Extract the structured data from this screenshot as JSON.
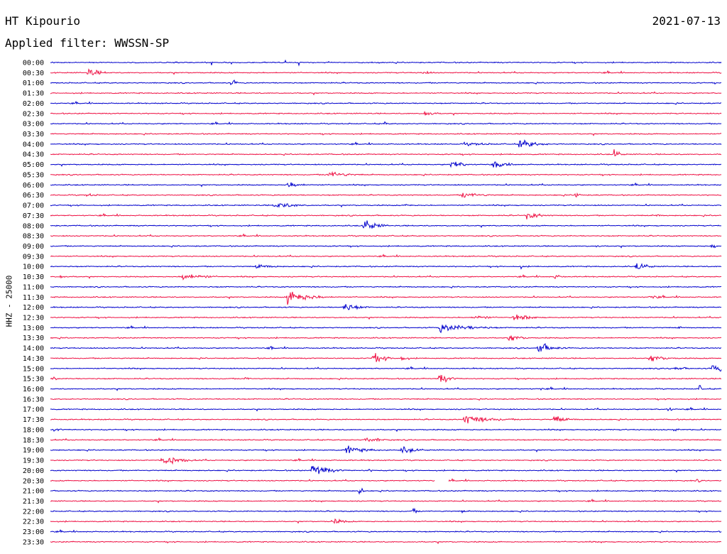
{
  "header": {
    "station": "HT Kipourio",
    "date": "2021-07-13",
    "filter": "Applied filter: WWSSN-SP",
    "channel": "HHZ - 25000"
  },
  "colors": {
    "even_row": "#0000cc",
    "odd_row": "#ee1144"
  },
  "chart_data": {
    "type": "line",
    "title": "HT Kipourio",
    "date": "2021-07-13",
    "filter": "WWSSN-SP",
    "ylabel": "HHZ - 25000",
    "row_labels": [
      "00:00",
      "00:30",
      "01:00",
      "01:30",
      "02:00",
      "02:30",
      "03:00",
      "03:30",
      "04:00",
      "04:30",
      "05:00",
      "05:30",
      "06:00",
      "06:30",
      "07:00",
      "07:30",
      "08:00",
      "08:30",
      "09:00",
      "09:30",
      "10:00",
      "10:30",
      "11:00",
      "11:30",
      "12:00",
      "12:30",
      "13:00",
      "13:30",
      "14:00",
      "14:30",
      "15:00",
      "15:30",
      "16:00",
      "16:30",
      "17:00",
      "17:30",
      "18:00",
      "18:30",
      "19:00",
      "19:30",
      "20:00",
      "20:30",
      "21:00",
      "21:30",
      "22:00",
      "22:30",
      "23:00",
      "23:30"
    ],
    "x_minutes_per_row": 30,
    "gaps": [
      {
        "row": "20:30",
        "from_minute": 17.2,
        "to_minute": 17.8
      }
    ],
    "events": [
      {
        "row": "00:30",
        "minute": 1.7,
        "amplitude": 8,
        "duration_min": 0.9
      },
      {
        "row": "00:30",
        "minute": 16.6,
        "amplitude": 4,
        "duration_min": 0.8
      },
      {
        "row": "01:00",
        "minute": 8.1,
        "amplitude": 8,
        "duration_min": 0.3
      },
      {
        "row": "02:30",
        "minute": 16.7,
        "amplitude": 7,
        "duration_min": 0.7
      },
      {
        "row": "03:00",
        "minute": 14.9,
        "amplitude": 5,
        "duration_min": 0.3
      },
      {
        "row": "04:00",
        "minute": 21.0,
        "amplitude": 11,
        "duration_min": 1.0
      },
      {
        "row": "04:00",
        "minute": 18.5,
        "amplitude": 3,
        "duration_min": 2.5
      },
      {
        "row": "04:30",
        "minute": 25.2,
        "amplitude": 10,
        "duration_min": 0.4
      },
      {
        "row": "05:00",
        "minute": 17.9,
        "amplitude": 9,
        "duration_min": 1.0
      },
      {
        "row": "05:00",
        "minute": 19.8,
        "amplitude": 9,
        "duration_min": 0.9
      },
      {
        "row": "05:30",
        "minute": 12.4,
        "amplitude": 7,
        "duration_min": 1.5
      },
      {
        "row": "06:00",
        "minute": 10.6,
        "amplitude": 7,
        "duration_min": 1.0
      },
      {
        "row": "06:30",
        "minute": 18.4,
        "amplitude": 6,
        "duration_min": 1.5
      },
      {
        "row": "06:30",
        "minute": 23.5,
        "amplitude": 7,
        "duration_min": 0.3
      },
      {
        "row": "06:30",
        "minute": 1.6,
        "amplitude": 3,
        "duration_min": 1.0
      },
      {
        "row": "07:00",
        "minute": 10.0,
        "amplitude": 7,
        "duration_min": 1.5
      },
      {
        "row": "07:00",
        "minute": 15.9,
        "amplitude": 4,
        "duration_min": 0.4
      },
      {
        "row": "07:30",
        "minute": 21.3,
        "amplitude": 7,
        "duration_min": 1.0
      },
      {
        "row": "07:30",
        "minute": 27.1,
        "amplitude": 4,
        "duration_min": 0.3
      },
      {
        "row": "08:00",
        "minute": 14.0,
        "amplitude": 11,
        "duration_min": 1.0
      },
      {
        "row": "09:00",
        "minute": 29.6,
        "amplitude": 8,
        "duration_min": 0.3
      },
      {
        "row": "09:00",
        "minute": 24.4,
        "amplitude": 3,
        "duration_min": 0.4
      },
      {
        "row": "10:00",
        "minute": 9.2,
        "amplitude": 5,
        "duration_min": 1.3
      },
      {
        "row": "10:00",
        "minute": 26.2,
        "amplitude": 8,
        "duration_min": 0.8
      },
      {
        "row": "10:00",
        "minute": 21.0,
        "amplitude": 4,
        "duration_min": 0.3
      },
      {
        "row": "10:30",
        "minute": 5.9,
        "amplitude": 8,
        "duration_min": 1.5
      },
      {
        "row": "10:30",
        "minute": 0.4,
        "amplitude": 5,
        "duration_min": 0.4
      },
      {
        "row": "10:30",
        "minute": 22.5,
        "amplitude": 6,
        "duration_min": 0.5
      },
      {
        "row": "11:30",
        "minute": 10.6,
        "amplitude": 15,
        "duration_min": 1.5
      },
      {
        "row": "11:30",
        "minute": 26.8,
        "amplitude": 4,
        "duration_min": 1.0
      },
      {
        "row": "12:00",
        "minute": 13.1,
        "amplitude": 8,
        "duration_min": 1.2
      },
      {
        "row": "12:30",
        "minute": 20.7,
        "amplitude": 7,
        "duration_min": 1.3
      },
      {
        "row": "12:30",
        "minute": 18.9,
        "amplitude": 5,
        "duration_min": 1.2
      },
      {
        "row": "13:00",
        "minute": 17.4,
        "amplitude": 8,
        "duration_min": 2.5
      },
      {
        "row": "13:00",
        "minute": 28.1,
        "amplitude": 4,
        "duration_min": 0.3
      },
      {
        "row": "13:30",
        "minute": 20.5,
        "amplitude": 7,
        "duration_min": 1.0
      },
      {
        "row": "14:00",
        "minute": 21.8,
        "amplitude": 11,
        "duration_min": 1.0
      },
      {
        "row": "14:00",
        "minute": 9.8,
        "amplitude": 5,
        "duration_min": 0.3
      },
      {
        "row": "14:30",
        "minute": 14.4,
        "amplitude": 10,
        "duration_min": 1.0
      },
      {
        "row": "14:30",
        "minute": 15.7,
        "amplitude": 8,
        "duration_min": 0.4
      },
      {
        "row": "14:30",
        "minute": 26.8,
        "amplitude": 7,
        "duration_min": 1.2
      },
      {
        "row": "15:00",
        "minute": 29.6,
        "amplitude": 10,
        "duration_min": 0.8
      },
      {
        "row": "15:00",
        "minute": 27.7,
        "amplitude": 4,
        "duration_min": 1.3
      },
      {
        "row": "15:30",
        "minute": 17.4,
        "amplitude": 11,
        "duration_min": 0.7
      },
      {
        "row": "15:30",
        "minute": 0.1,
        "amplitude": 6,
        "duration_min": 0.3
      },
      {
        "row": "15:30",
        "minute": 8.7,
        "amplitude": 7,
        "duration_min": 0.2
      },
      {
        "row": "16:00",
        "minute": 29.0,
        "amplitude": 7,
        "duration_min": 0.3
      },
      {
        "row": "16:00",
        "minute": 21.9,
        "amplitude": 4,
        "duration_min": 0.2
      },
      {
        "row": "17:00",
        "minute": 27.6,
        "amplitude": 6,
        "duration_min": 0.4
      },
      {
        "row": "17:30",
        "minute": 18.5,
        "amplitude": 9,
        "duration_min": 2.0
      },
      {
        "row": "17:30",
        "minute": 22.5,
        "amplitude": 8,
        "duration_min": 1.0
      },
      {
        "row": "18:00",
        "minute": 0.2,
        "amplitude": 5,
        "duration_min": 0.4
      },
      {
        "row": "18:00",
        "minute": 27.9,
        "amplitude": 5,
        "duration_min": 0.3
      },
      {
        "row": "18:30",
        "minute": 14.1,
        "amplitude": 6,
        "duration_min": 1.2
      },
      {
        "row": "19:00",
        "minute": 13.2,
        "amplitude": 8,
        "duration_min": 1.5
      },
      {
        "row": "19:00",
        "minute": 15.7,
        "amplitude": 6,
        "duration_min": 1.2
      },
      {
        "row": "19:30",
        "minute": 5.0,
        "amplitude": 9,
        "duration_min": 1.5
      },
      {
        "row": "20:00",
        "minute": 11.7,
        "amplitude": 12,
        "duration_min": 1.2
      },
      {
        "row": "20:00",
        "minute": 14.2,
        "amplitude": 4,
        "duration_min": 0.4
      },
      {
        "row": "20:30",
        "minute": 28.9,
        "amplitude": 4,
        "duration_min": 0.3
      },
      {
        "row": "21:00",
        "minute": 13.8,
        "amplitude": 8,
        "duration_min": 0.3
      },
      {
        "row": "21:00",
        "minute": 23.4,
        "amplitude": 4,
        "duration_min": 0.2
      },
      {
        "row": "22:00",
        "minute": 16.2,
        "amplitude": 5,
        "duration_min": 0.4
      },
      {
        "row": "22:00",
        "minute": 18.4,
        "amplitude": 5,
        "duration_min": 0.2
      },
      {
        "row": "22:30",
        "minute": 12.6,
        "amplitude": 6,
        "duration_min": 1.0
      }
    ]
  }
}
